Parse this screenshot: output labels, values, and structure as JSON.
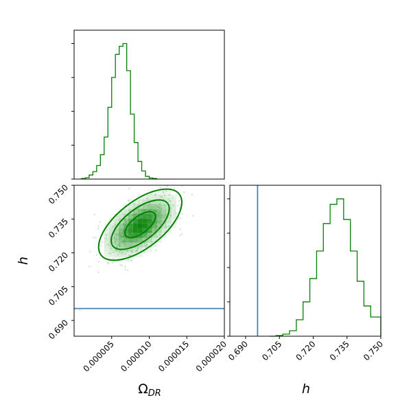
{
  "chart_data": {
    "type": "corner",
    "parameters": [
      "Ω_DR",
      "h"
    ],
    "colors": {
      "posterior": "#008000",
      "truth": "#4682b4",
      "frame": "#000000"
    },
    "panels": [
      {
        "id": "hist-omega",
        "type": "histogram",
        "parameter": "Ω_DR",
        "xlim": [
          0.0,
          2e-05
        ],
        "bins": [
          [
            1e-06,
            1.5e-06,
            0.004
          ],
          [
            1.5e-06,
            2e-06,
            0.01
          ],
          [
            2e-06,
            2.5e-06,
            0.03
          ],
          [
            2.5e-06,
            3e-06,
            0.055
          ],
          [
            3e-06,
            3.5e-06,
            0.1
          ],
          [
            3.5e-06,
            4e-06,
            0.18
          ],
          [
            4e-06,
            4.5e-06,
            0.31
          ],
          [
            4.5e-06,
            5e-06,
            0.53
          ],
          [
            5e-06,
            5.5e-06,
            0.75
          ],
          [
            5.5e-06,
            6e-06,
            0.92
          ],
          [
            6e-06,
            6.5e-06,
            0.98
          ],
          [
            6.5e-06,
            7e-06,
            1.0
          ],
          [
            7e-06,
            7.5e-06,
            0.8
          ],
          [
            7.5e-06,
            8e-06,
            0.48
          ],
          [
            8e-06,
            8.5e-06,
            0.27
          ],
          [
            8.5e-06,
            9e-06,
            0.13
          ],
          [
            9e-06,
            9.5e-06,
            0.06
          ],
          [
            9.5e-06,
            1e-05,
            0.02
          ],
          [
            1e-05,
            1.05e-05,
            0.008
          ],
          [
            1.05e-05,
            1.1e-05,
            0.004
          ]
        ]
      },
      {
        "id": "joint-omega-h",
        "type": "2d-density",
        "xparameter": "Ω_DR",
        "yparameter": "h",
        "xlim": [
          0.0,
          2e-05
        ],
        "ylim": [
          0.683,
          0.75
        ],
        "xticks": [
          5e-06,
          1e-05,
          1.5e-05,
          2e-05
        ],
        "xticklabels": [
          "0.000005",
          "0.000010",
          "0.000015",
          "0.000020"
        ],
        "yticks": [
          0.69,
          0.705,
          0.72,
          0.735,
          0.75
        ],
        "yticklabels": [
          "0.690",
          "0.705",
          "0.720",
          "0.735",
          "0.750"
        ],
        "xlabel": "Ω",
        "xlabel_sub": "DR",
        "ylabel": "h",
        "peak": [
          8.8e-06,
          0.732
        ],
        "contours": [
          {
            "level": "inner",
            "cx": 8.8e-06,
            "cy": 0.7325,
            "rx": 2.2e-06,
            "ry": 0.0048
          },
          {
            "level": "middle",
            "cx": 8.8e-06,
            "cy": 0.7325,
            "rx": 4.2e-06,
            "ry": 0.009
          },
          {
            "level": "outer",
            "cx": 8.8e-06,
            "cy": 0.7325,
            "rx": 6e-06,
            "ry": 0.0132
          }
        ],
        "truth_h": 0.6953
      },
      {
        "id": "hist-h",
        "type": "histogram",
        "parameter": "h",
        "xlim": [
          0.683,
          0.75
        ],
        "xticks": [
          0.69,
          0.705,
          0.72,
          0.735,
          0.75
        ],
        "xticklabels": [
          "0.690",
          "0.705",
          "0.720",
          "0.735",
          "0.750"
        ],
        "xlabel": "h",
        "truth_h": 0.6953,
        "bins": [
          [
            0.7005,
            0.7035,
            0.0
          ],
          [
            0.7035,
            0.7065,
            0.005
          ],
          [
            0.7065,
            0.7095,
            0.015
          ],
          [
            0.7095,
            0.7125,
            0.04
          ],
          [
            0.7125,
            0.7155,
            0.12
          ],
          [
            0.7155,
            0.7185,
            0.25
          ],
          [
            0.7185,
            0.7215,
            0.42
          ],
          [
            0.7215,
            0.7245,
            0.62
          ],
          [
            0.7245,
            0.7275,
            0.82
          ],
          [
            0.7275,
            0.7305,
            0.96
          ],
          [
            0.7305,
            0.7335,
            1.0
          ],
          [
            0.7335,
            0.7365,
            0.85
          ],
          [
            0.7365,
            0.7395,
            0.62
          ],
          [
            0.7395,
            0.7425,
            0.4
          ],
          [
            0.7425,
            0.7455,
            0.22
          ],
          [
            0.7455,
            0.75,
            0.14
          ]
        ]
      }
    ]
  }
}
